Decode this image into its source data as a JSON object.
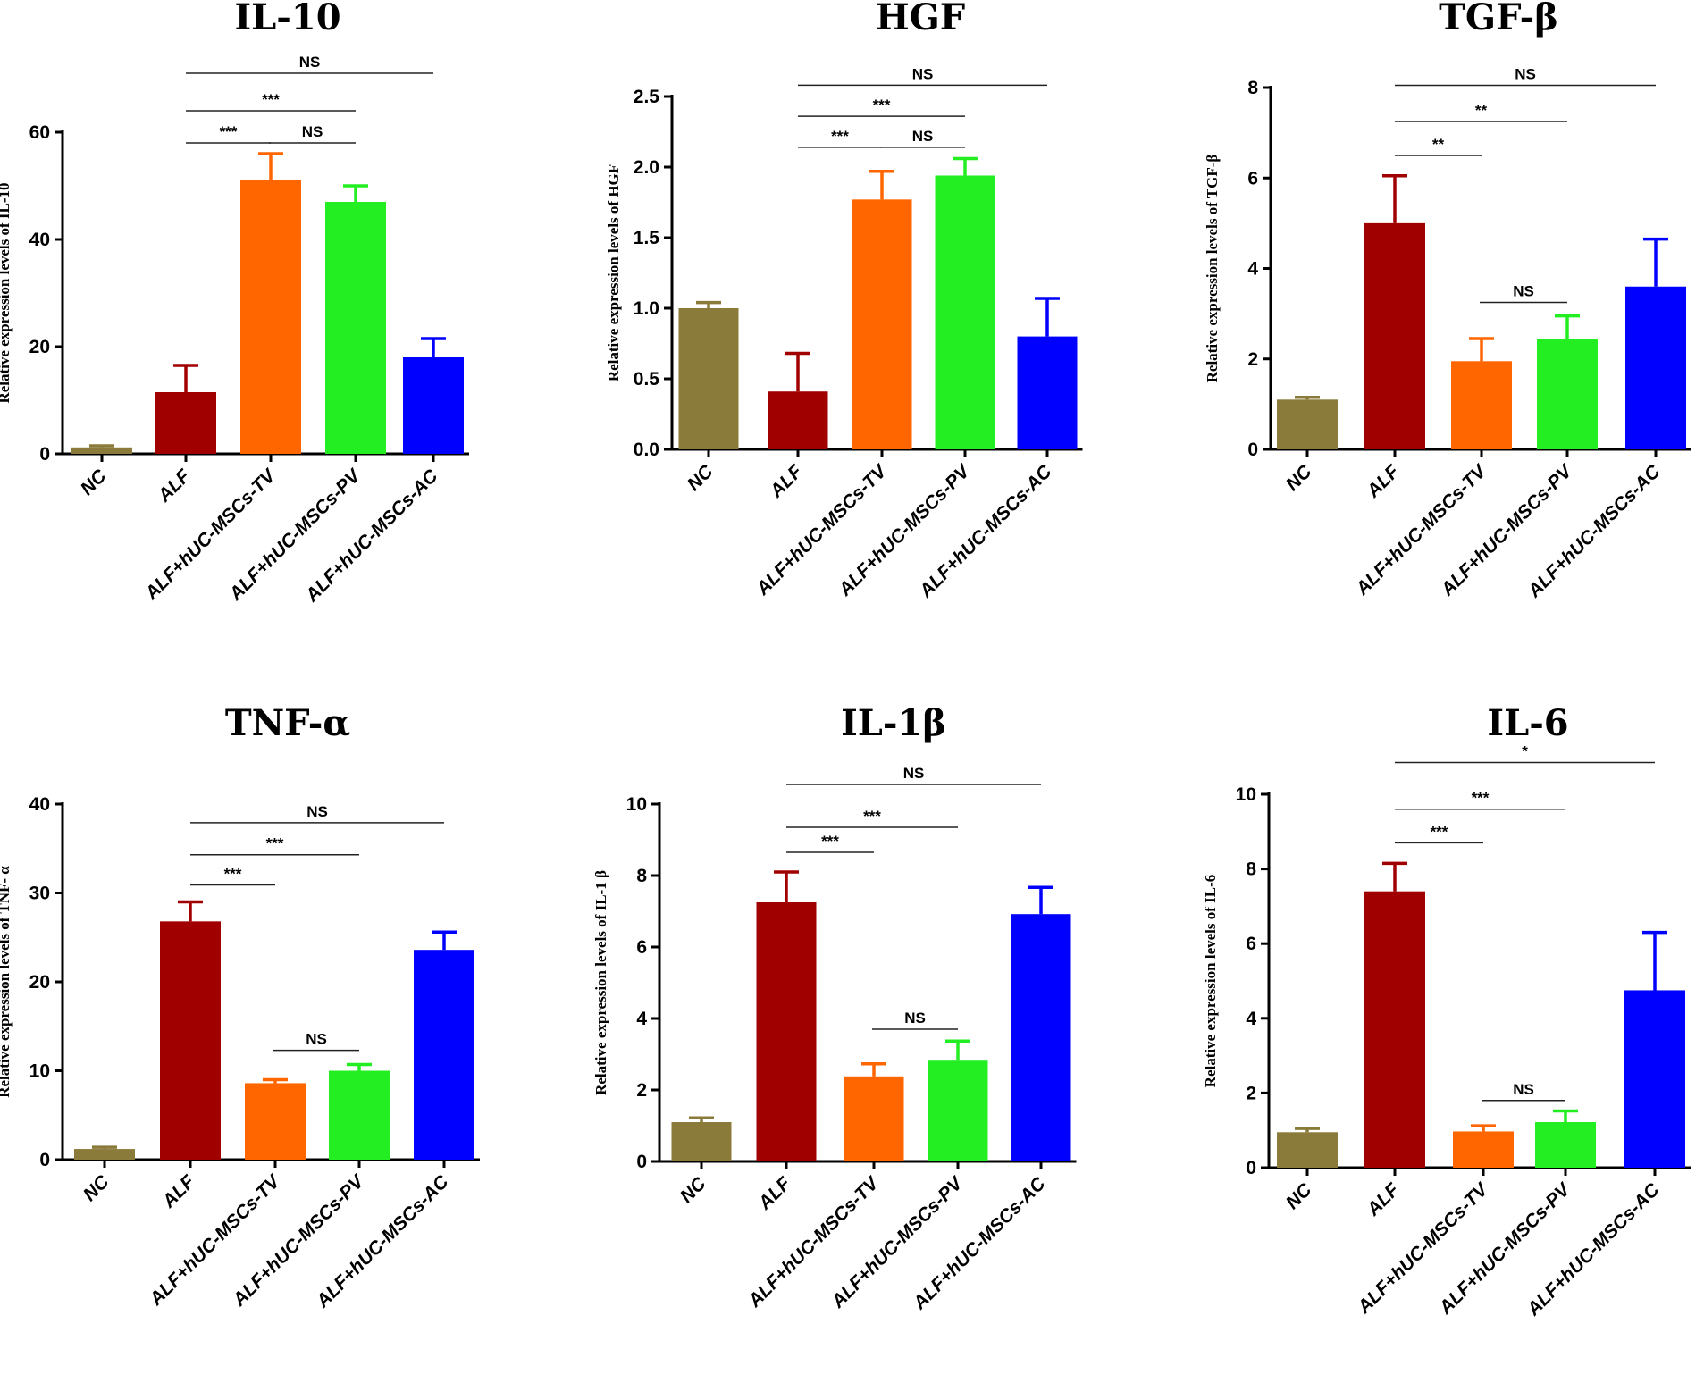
{
  "chart_data": [
    {
      "type": "bar",
      "title": "IL-10",
      "ylabel": "Relative expression levels of IL-10",
      "xlabel": "",
      "categories": [
        "NC",
        "ALF",
        "ALF+hUC-MSCs-TV",
        "ALF+hUC-MSCs-PV",
        "ALF+hUC-MSCs-AC"
      ],
      "values": [
        1.2,
        11.5,
        51,
        47,
        18
      ],
      "errors": [
        0.3,
        5,
        5,
        3,
        3.5
      ],
      "colors": [
        "#8B7B3A",
        "#A00000",
        "#FF6600",
        "#22EE22",
        "#0000FF"
      ],
      "ylim": [
        0,
        60
      ],
      "yticks": [
        0,
        20,
        40,
        60
      ],
      "ytick_labels": [
        "0",
        "20",
        "40",
        "60"
      ],
      "significance": [
        {
          "from": 1,
          "to": 2,
          "label": "***",
          "at": 58
        },
        {
          "from": 2,
          "to": 3,
          "label": "NS",
          "at": 58
        },
        {
          "from": 1,
          "to": 3,
          "label": "***",
          "at": 64
        },
        {
          "from": 1,
          "to": 4,
          "label": "NS",
          "at": 71
        }
      ]
    },
    {
      "type": "bar",
      "title": "HGF",
      "ylabel": "Relative expression levels of HGF",
      "xlabel": "",
      "categories": [
        "NC",
        "ALF",
        "ALF+hUC-MSCs-TV",
        "ALF+hUC-MSCs-PV",
        "ALF+hUC-MSCs-AC"
      ],
      "values": [
        1.0,
        0.41,
        1.77,
        1.94,
        0.8
      ],
      "errors": [
        0.04,
        0.27,
        0.2,
        0.12,
        0.27
      ],
      "colors": [
        "#8B7B3A",
        "#A00000",
        "#FF6600",
        "#22EE22",
        "#0000FF"
      ],
      "ylim": [
        0,
        2.5
      ],
      "yticks": [
        0,
        0.5,
        1.0,
        1.5,
        2.0,
        2.5
      ],
      "ytick_labels": [
        "0.0",
        "0.5",
        "1.0",
        "1.5",
        "2.0",
        "2.5"
      ],
      "significance": [
        {
          "from": 1,
          "to": 2,
          "label": "***",
          "at": 2.14
        },
        {
          "from": 2,
          "to": 3,
          "label": "NS",
          "at": 2.14
        },
        {
          "from": 1,
          "to": 3,
          "label": "***",
          "at": 2.36
        },
        {
          "from": 1,
          "to": 4,
          "label": "NS",
          "at": 2.58
        }
      ]
    },
    {
      "type": "bar",
      "title": "TGF-β",
      "ylabel": "Relative expression levels of TGF-β",
      "xlabel": "",
      "categories": [
        "NC",
        "ALF",
        "ALF+hUC-MSCs-TV",
        "ALF+hUC-MSCs-PV",
        "ALF+hUC-MSCs-AC"
      ],
      "values": [
        1.1,
        5.0,
        1.95,
        2.45,
        3.6
      ],
      "errors": [
        0.05,
        1.05,
        0.5,
        0.5,
        1.05
      ],
      "colors": [
        "#8B7B3A",
        "#A00000",
        "#FF6600",
        "#22EE22",
        "#0000FF"
      ],
      "ylim": [
        0,
        8
      ],
      "yticks": [
        0,
        2,
        4,
        6,
        8
      ],
      "ytick_labels": [
        "0",
        "2",
        "4",
        "6",
        "8"
      ],
      "significance": [
        {
          "from": 1,
          "to": 2,
          "label": "**",
          "at": 6.5
        },
        {
          "from": 2,
          "to": 3,
          "label": "NS",
          "at": 3.25
        },
        {
          "from": 1,
          "to": 3,
          "label": "**",
          "at": 7.25
        },
        {
          "from": 1,
          "to": 4,
          "label": "NS",
          "at": 8.05
        }
      ]
    },
    {
      "type": "bar",
      "title": "TNF-α",
      "ylabel": "Relative expression levels of TNF- α",
      "xlabel": "",
      "categories": [
        "NC",
        "ALF",
        "ALF+hUC-MSCs-TV",
        "ALF+hUC-MSCs-PV",
        "ALF+hUC-MSCs-AC"
      ],
      "values": [
        1.2,
        26.8,
        8.6,
        10.0,
        23.6
      ],
      "errors": [
        0.2,
        2.2,
        0.4,
        0.7,
        2.0
      ],
      "colors": [
        "#8B7B3A",
        "#A00000",
        "#FF6600",
        "#22EE22",
        "#0000FF"
      ],
      "ylim": [
        0,
        40
      ],
      "yticks": [
        0,
        10,
        20,
        30,
        40
      ],
      "ytick_labels": [
        "0",
        "10",
        "20",
        "30",
        "40"
      ],
      "significance": [
        {
          "from": 1,
          "to": 2,
          "label": "***",
          "at": 30.9
        },
        {
          "from": 2,
          "to": 3,
          "label": "NS",
          "at": 12.3
        },
        {
          "from": 1,
          "to": 3,
          "label": "***",
          "at": 34.3
        },
        {
          "from": 1,
          "to": 4,
          "label": "NS",
          "at": 37.9
        }
      ]
    },
    {
      "type": "bar",
      "title": "IL-1β",
      "ylabel": "Relative expression levels of  IL-1 β",
      "xlabel": "",
      "categories": [
        "NC",
        "ALF",
        "ALF+hUC-MSCs-TV",
        "ALF+hUC-MSCs-PV",
        "ALF+hUC-MSCs-AC"
      ],
      "values": [
        1.1,
        7.25,
        2.38,
        2.82,
        6.92
      ],
      "errors": [
        0.12,
        0.85,
        0.35,
        0.55,
        0.75
      ],
      "colors": [
        "#8B7B3A",
        "#A00000",
        "#FF6600",
        "#22EE22",
        "#0000FF"
      ],
      "ylim": [
        0,
        10
      ],
      "yticks": [
        0,
        2,
        4,
        6,
        8,
        10
      ],
      "ytick_labels": [
        "0",
        "2",
        "4",
        "6",
        "8",
        "10"
      ],
      "significance": [
        {
          "from": 1,
          "to": 2,
          "label": "***",
          "at": 8.65
        },
        {
          "from": 2,
          "to": 3,
          "label": "NS",
          "at": 3.7
        },
        {
          "from": 1,
          "to": 3,
          "label": "***",
          "at": 9.35
        },
        {
          "from": 1,
          "to": 4,
          "label": "NS",
          "at": 10.55
        }
      ]
    },
    {
      "type": "bar",
      "title": "IL-6",
      "ylabel": "Relative expression levels of IL-6",
      "xlabel": "",
      "categories": [
        "NC",
        "ALF",
        "ALF+hUC-MSCs-TV",
        "ALF+hUC-MSCs-PV",
        "ALF+hUC-MSCs-AC"
      ],
      "values": [
        0.95,
        7.4,
        0.97,
        1.22,
        4.75
      ],
      "errors": [
        0.1,
        0.75,
        0.15,
        0.3,
        1.55
      ],
      "colors": [
        "#8B7B3A",
        "#A00000",
        "#FF6600",
        "#22EE22",
        "#0000FF"
      ],
      "ylim": [
        0,
        10
      ],
      "yticks": [
        0,
        2,
        4,
        6,
        8,
        10
      ],
      "ytick_labels": [
        "0",
        "2",
        "4",
        "6",
        "8",
        "10"
      ],
      "significance": [
        {
          "from": 1,
          "to": 2,
          "label": "***",
          "at": 8.7
        },
        {
          "from": 2,
          "to": 3,
          "label": "NS",
          "at": 1.8
        },
        {
          "from": 1,
          "to": 3,
          "label": "***",
          "at": 9.6
        },
        {
          "from": 1,
          "to": 4,
          "label": "*",
          "at": 10.85
        }
      ]
    }
  ]
}
